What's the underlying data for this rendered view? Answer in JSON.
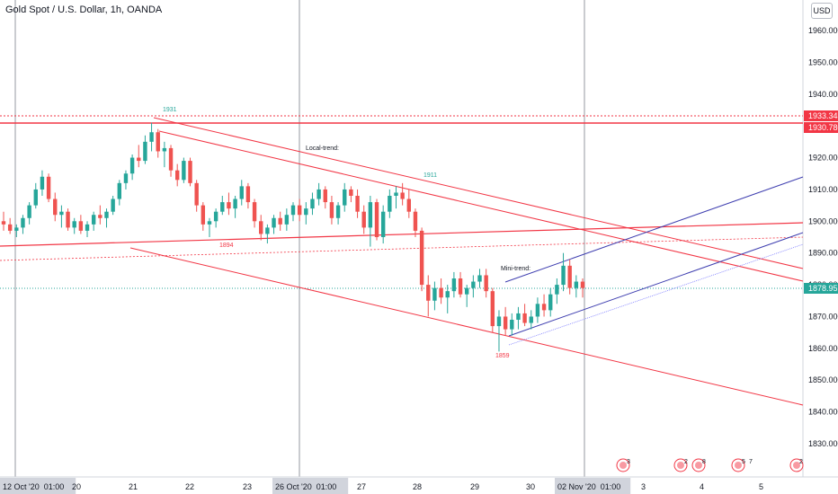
{
  "header": {
    "title": "Gold Spot / U.S. Dollar, 1h, OANDA",
    "currency": "USD"
  },
  "chart_data": {
    "type": "candlestick",
    "symbol": "Gold Spot / U.S. Dollar",
    "interval": "1h",
    "source": "OANDA",
    "ylim": [
      1825,
      1970
    ],
    "y_ticks": [
      1960,
      1950,
      1940,
      1930,
      1920,
      1910,
      1900,
      1890,
      1880,
      1870,
      1860,
      1850,
      1840,
      1830
    ],
    "y_tick_labels": [
      "1960.000",
      "1950.000",
      "1940.000",
      "1930.000",
      "1920.000",
      "1910.000",
      "1900.000",
      "1890.000",
      "1880.000",
      "1870.000",
      "1860.000",
      "1850.000",
      "1840.000",
      "1830.000"
    ],
    "x_labels": [
      {
        "pos": 0,
        "label": "12 Oct '20  01:00",
        "highlight": true
      },
      {
        "pos": 1,
        "label": "20"
      },
      {
        "pos": 2,
        "label": "21"
      },
      {
        "pos": 3,
        "label": "22"
      },
      {
        "pos": 4,
        "label": "23"
      },
      {
        "pos": 5,
        "label": "26 Oct '20  01:00",
        "highlight": true
      },
      {
        "pos": 6,
        "label": "27"
      },
      {
        "pos": 7,
        "label": "28"
      },
      {
        "pos": 8,
        "label": "29"
      },
      {
        "pos": 9,
        "label": "30"
      },
      {
        "pos": 10,
        "label": "02 Nov '20  01:00",
        "highlight": true
      },
      {
        "pos": 11,
        "label": "3"
      },
      {
        "pos": 12,
        "label": "4"
      },
      {
        "pos": 13,
        "label": "5"
      }
    ],
    "price_badges": [
      {
        "value": "1933.347",
        "color": "#f23645",
        "price": 1933.347
      },
      {
        "value": "1930.780",
        "color": "#f23645",
        "price": 1930.78
      },
      {
        "value": "1878.952",
        "color": "#26a69a",
        "price": 1878.952
      }
    ],
    "annotations": [
      {
        "text": "1931",
        "color": "#26a69a",
        "price": 1931.5
      },
      {
        "text": "1911",
        "color": "#26a69a",
        "price": 1911.5
      },
      {
        "text": "1894",
        "color": "#f23645",
        "price": 1894
      },
      {
        "text": "1859",
        "color": "#f23645",
        "price": 1859.2
      },
      {
        "text": "Local-trend:",
        "color": "#131722"
      },
      {
        "text": "Mini-trend:",
        "color": "#131722"
      }
    ],
    "event_markers": [
      "3",
      "2",
      "8",
      "5",
      "7",
      "2"
    ],
    "candles_ohlc": [
      [
        1900,
        1903,
        1897,
        1899
      ],
      [
        1899,
        1901,
        1896,
        1897
      ],
      [
        1897,
        1899,
        1895,
        1898
      ],
      [
        1898,
        1902,
        1896,
        1901
      ],
      [
        1901,
        1906,
        1899,
        1905
      ],
      [
        1905,
        1912,
        1904,
        1910
      ],
      [
        1910,
        1916,
        1908,
        1914
      ],
      [
        1914,
        1915,
        1906,
        1907
      ],
      [
        1907,
        1909,
        1900,
        1902
      ],
      [
        1902,
        1905,
        1898,
        1903
      ],
      [
        1903,
        1904,
        1897,
        1898
      ],
      [
        1898,
        1901,
        1896,
        1900
      ],
      [
        1900,
        1902,
        1896,
        1897
      ],
      [
        1897,
        1900,
        1895,
        1899
      ],
      [
        1899,
        1903,
        1897,
        1902
      ],
      [
        1902,
        1905,
        1899,
        1901
      ],
      [
        1901,
        1904,
        1898,
        1903
      ],
      [
        1903,
        1908,
        1902,
        1907
      ],
      [
        1907,
        1913,
        1905,
        1912
      ],
      [
        1912,
        1916,
        1910,
        1915
      ],
      [
        1915,
        1921,
        1913,
        1920
      ],
      [
        1920,
        1924,
        1917,
        1919
      ],
      [
        1919,
        1927,
        1918,
        1925
      ],
      [
        1925,
        1931,
        1922,
        1928
      ],
      [
        1928,
        1929,
        1920,
        1922
      ],
      [
        1922,
        1925,
        1917,
        1923
      ],
      [
        1923,
        1924,
        1914,
        1916
      ],
      [
        1916,
        1918,
        1911,
        1913
      ],
      [
        1913,
        1920,
        1912,
        1919
      ],
      [
        1919,
        1920,
        1911,
        1912
      ],
      [
        1912,
        1913,
        1903,
        1905
      ],
      [
        1905,
        1906,
        1897,
        1899
      ],
      [
        1899,
        1901,
        1895,
        1900
      ],
      [
        1900,
        1904,
        1898,
        1903
      ],
      [
        1903,
        1908,
        1902,
        1906
      ],
      [
        1906,
        1909,
        1902,
        1904
      ],
      [
        1904,
        1908,
        1901,
        1907
      ],
      [
        1907,
        1913,
        1905,
        1911
      ],
      [
        1911,
        1912,
        1904,
        1906
      ],
      [
        1906,
        1907,
        1898,
        1900
      ],
      [
        1900,
        1902,
        1894,
        1896
      ],
      [
        1896,
        1899,
        1893,
        1898
      ],
      [
        1898,
        1902,
        1896,
        1901
      ],
      [
        1901,
        1903,
        1897,
        1899
      ],
      [
        1899,
        1904,
        1897,
        1902
      ],
      [
        1902,
        1906,
        1900,
        1905
      ],
      [
        1905,
        1907,
        1900,
        1902
      ],
      [
        1902,
        1906,
        1899,
        1904
      ],
      [
        1904,
        1909,
        1902,
        1907
      ],
      [
        1907,
        1912,
        1905,
        1910
      ],
      [
        1910,
        1911,
        1904,
        1906
      ],
      [
        1906,
        1908,
        1899,
        1901
      ],
      [
        1901,
        1906,
        1899,
        1905
      ],
      [
        1905,
        1912,
        1903,
        1910
      ],
      [
        1910,
        1911,
        1906,
        1908
      ],
      [
        1908,
        1910,
        1901,
        1903
      ],
      [
        1903,
        1905,
        1896,
        1898
      ],
      [
        1898,
        1908,
        1892,
        1906
      ],
      [
        1906,
        1907,
        1894,
        1895
      ],
      [
        1895,
        1905,
        1893,
        1903
      ],
      [
        1903,
        1910,
        1901,
        1908
      ],
      [
        1908,
        1911,
        1904,
        1909
      ],
      [
        1909,
        1912,
        1905,
        1907
      ],
      [
        1907,
        1910,
        1901,
        1903
      ],
      [
        1903,
        1904,
        1895,
        1897
      ],
      [
        1897,
        1898,
        1878,
        1880
      ],
      [
        1880,
        1883,
        1870,
        1875
      ],
      [
        1875,
        1881,
        1872,
        1879
      ],
      [
        1879,
        1882,
        1874,
        1876
      ],
      [
        1876,
        1880,
        1871,
        1878
      ],
      [
        1878,
        1884,
        1876,
        1882
      ],
      [
        1882,
        1884,
        1876,
        1877
      ],
      [
        1877,
        1880,
        1873,
        1879
      ],
      [
        1879,
        1883,
        1876,
        1881
      ],
      [
        1881,
        1885,
        1879,
        1883
      ],
      [
        1883,
        1885,
        1876,
        1878
      ],
      [
        1878,
        1879,
        1865,
        1867
      ],
      [
        1867,
        1872,
        1859,
        1870
      ],
      [
        1870,
        1873,
        1864,
        1866
      ],
      [
        1866,
        1871,
        1864,
        1869
      ],
      [
        1869,
        1873,
        1866,
        1871
      ],
      [
        1871,
        1874,
        1867,
        1868
      ],
      [
        1868,
        1872,
        1866,
        1870
      ],
      [
        1870,
        1876,
        1868,
        1874
      ],
      [
        1874,
        1877,
        1870,
        1872
      ],
      [
        1872,
        1879,
        1870,
        1877
      ],
      [
        1877,
        1882,
        1874,
        1880
      ],
      [
        1880,
        1890,
        1878,
        1886
      ],
      [
        1886,
        1888,
        1877,
        1879
      ],
      [
        1879,
        1883,
        1876,
        1881
      ],
      [
        1881,
        1882,
        1876,
        1879
      ]
    ],
    "horizontal_levels": [
      1933.347,
      1930.78,
      1878.952
    ]
  }
}
